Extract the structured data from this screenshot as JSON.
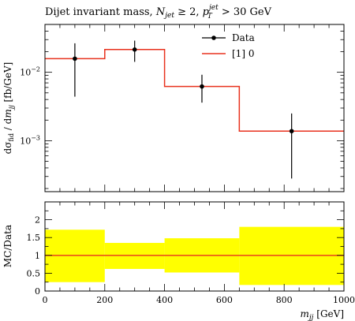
{
  "chart_data": [
    {
      "type": "histogram",
      "title_parts": {
        "prefix": "Dijet invariant mass, ",
        "njet": "N",
        "njet_sub": "jet",
        "njet_rel": " ≥ 2, ",
        "pt": "p",
        "pt_sub": "T",
        "pt_sup": "jet",
        "pt_rel": " > 30 GeV"
      },
      "ylabel": "dσ_fid / dm_jj [fb/GeV]",
      "ylabel_parts": {
        "a": "dσ",
        "a_sub": "fid",
        "b": " / d",
        "c": "m",
        "c_sub": "jj",
        "d": " [fb/GeV]"
      },
      "yscale": "log",
      "ylim": [
        0.00018,
        0.05
      ],
      "y_ticks": [
        {
          "value": 0.01,
          "mantissa": "10",
          "exp": "−2"
        },
        {
          "value": 0.001,
          "mantissa": "10",
          "exp": "−3"
        }
      ],
      "xlim": [
        0,
        1000
      ],
      "bin_edges": [
        0,
        200,
        400,
        650,
        1000
      ],
      "data": {
        "name": "Data",
        "x": [
          100,
          300,
          525,
          825
        ],
        "y": [
          0.0158,
          0.0215,
          0.0062,
          0.00138
        ],
        "y_low": [
          0.0044,
          0.0142,
          0.0036,
          0.00028
        ],
        "y_high": [
          0.0265,
          0.029,
          0.0092,
          0.0025
        ]
      },
      "mc": {
        "name": "[1] 0",
        "values": [
          0.0158,
          0.0215,
          0.0062,
          0.00138
        ]
      },
      "legend_position": "top-right",
      "colors": {
        "mc": "#e8321e",
        "data": "#000000"
      }
    },
    {
      "type": "ratio",
      "ylabel": "MC/Data",
      "ylim": [
        0,
        2.5
      ],
      "y_ticks": [
        "0",
        "0.5",
        "1",
        "1.5",
        "2"
      ],
      "x_ticks": [
        "0",
        "200",
        "400",
        "600",
        "800",
        "1000"
      ],
      "xlabel_parts": {
        "m": "m",
        "sub": "jj",
        "unit": " [GeV]"
      },
      "bin_edges": [
        0,
        200,
        400,
        650,
        1000
      ],
      "band_low": [
        0.25,
        0.62,
        0.52,
        0.17
      ],
      "band_high": [
        1.72,
        1.35,
        1.48,
        1.8
      ],
      "ratio_values": [
        1,
        1,
        1,
        1
      ],
      "colors": {
        "band": "#ffff00",
        "line": "#e8321e"
      }
    }
  ]
}
